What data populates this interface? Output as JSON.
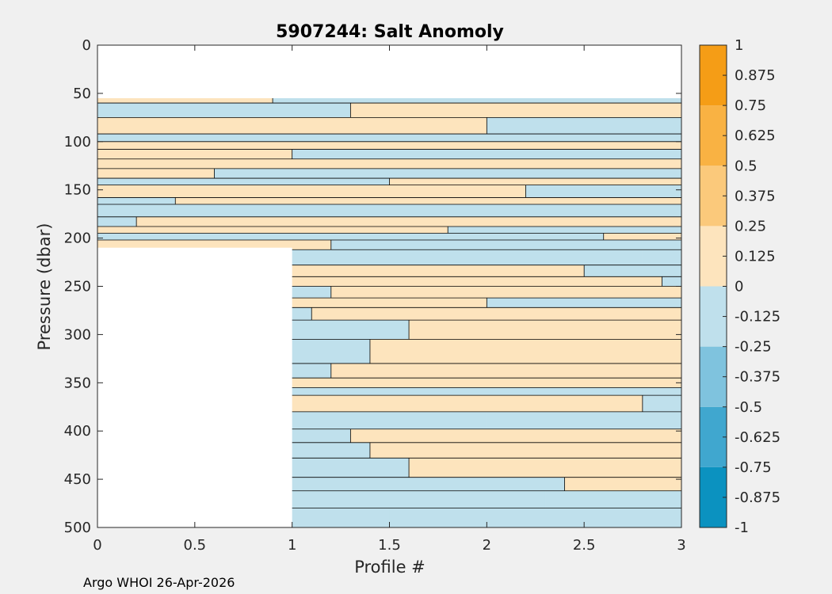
{
  "chart_data": {
    "type": "contourf",
    "title": "5907244: Salt Anomoly",
    "xlabel": "Profile #",
    "ylabel": "Pressure (dbar)",
    "xlim": [
      0,
      3
    ],
    "ylim": [
      0,
      500
    ],
    "y_reversed": true,
    "x_ticks": [
      0,
      0.5,
      1,
      1.5,
      2,
      2.5,
      3
    ],
    "x_tick_labels": [
      "0",
      "0.5",
      "1",
      "1.5",
      "2",
      "2.5",
      "3"
    ],
    "y_ticks": [
      0,
      50,
      100,
      150,
      200,
      250,
      300,
      350,
      400,
      450,
      500
    ],
    "y_tick_labels": [
      "0",
      "50",
      "100",
      "150",
      "200",
      "250",
      "300",
      "350",
      "400",
      "450",
      "500"
    ],
    "profiles": [
      {
        "x": 0,
        "top": 55,
        "bottom": 210
      },
      {
        "x": 1,
        "top": 55,
        "bottom": 500
      },
      {
        "x": 2,
        "top": 55,
        "bottom": 500
      },
      {
        "x": 3,
        "top": 55,
        "bottom": 500
      }
    ],
    "anomaly_bands": [
      {
        "pmin": 55,
        "pmax": 60,
        "x_split": 0.9,
        "left": 0.1,
        "right": -0.1
      },
      {
        "pmin": 60,
        "pmax": 75,
        "x_split": 1.3,
        "left": -0.1,
        "right": 0.1
      },
      {
        "pmin": 75,
        "pmax": 92,
        "x_split": 2.0,
        "left": 0.1,
        "right": -0.1
      },
      {
        "pmin": 92,
        "pmax": 100,
        "x_split": 0.3,
        "left": -0.1,
        "right": -0.1
      },
      {
        "pmin": 100,
        "pmax": 108,
        "x_split": 2.8,
        "left": 0.1,
        "right": 0.1
      },
      {
        "pmin": 108,
        "pmax": 118,
        "x_split": 1.0,
        "left": 0.1,
        "right": -0.1
      },
      {
        "pmin": 118,
        "pmax": 128,
        "x_split": 2.0,
        "left": 0.1,
        "right": 0.1
      },
      {
        "pmin": 128,
        "pmax": 138,
        "x_split": 0.6,
        "left": 0.1,
        "right": -0.1
      },
      {
        "pmin": 138,
        "pmax": 145,
        "x_split": 1.5,
        "left": -0.1,
        "right": 0.1
      },
      {
        "pmin": 145,
        "pmax": 158,
        "x_split": 2.2,
        "left": 0.1,
        "right": -0.1
      },
      {
        "pmin": 158,
        "pmax": 165,
        "x_split": 0.4,
        "left": -0.1,
        "right": 0.1
      },
      {
        "pmin": 165,
        "pmax": 178,
        "x_split": 2.4,
        "left": -0.1,
        "right": -0.1
      },
      {
        "pmin": 178,
        "pmax": 188,
        "x_split": 0.2,
        "left": -0.1,
        "right": 0.1
      },
      {
        "pmin": 188,
        "pmax": 195,
        "x_split": 1.8,
        "left": 0.1,
        "right": -0.1
      },
      {
        "pmin": 195,
        "pmax": 202,
        "x_split": 2.6,
        "left": -0.1,
        "right": 0.1
      },
      {
        "pmin": 202,
        "pmax": 212,
        "x_split": 1.2,
        "left": 0.1,
        "right": -0.1
      },
      {
        "pmin": 212,
        "pmax": 228,
        "x_split": 2.8,
        "left": -0.1,
        "right": -0.1
      },
      {
        "pmin": 228,
        "pmax": 240,
        "x_split": 2.5,
        "left": 0.1,
        "right": -0.1
      },
      {
        "pmin": 240,
        "pmax": 250,
        "x_split": 2.9,
        "left": 0.1,
        "right": -0.1
      },
      {
        "pmin": 250,
        "pmax": 262,
        "x_split": 1.2,
        "left": -0.1,
        "right": 0.1
      },
      {
        "pmin": 262,
        "pmax": 272,
        "x_split": 2.0,
        "left": 0.1,
        "right": -0.1
      },
      {
        "pmin": 272,
        "pmax": 285,
        "x_split": 1.1,
        "left": -0.1,
        "right": 0.1
      },
      {
        "pmin": 285,
        "pmax": 305,
        "x_split": 1.6,
        "left": -0.1,
        "right": 0.1
      },
      {
        "pmin": 305,
        "pmax": 330,
        "x_split": 1.4,
        "left": -0.1,
        "right": 0.1
      },
      {
        "pmin": 330,
        "pmax": 345,
        "x_split": 1.2,
        "left": -0.1,
        "right": 0.1
      },
      {
        "pmin": 345,
        "pmax": 355,
        "x_split": 2.6,
        "left": 0.1,
        "right": 0.1
      },
      {
        "pmin": 355,
        "pmax": 363,
        "x_split": 2.7,
        "left": -0.1,
        "right": -0.1
      },
      {
        "pmin": 363,
        "pmax": 380,
        "x_split": 2.8,
        "left": 0.1,
        "right": -0.1
      },
      {
        "pmin": 380,
        "pmax": 398,
        "x_split": 2.0,
        "left": -0.1,
        "right": -0.1
      },
      {
        "pmin": 398,
        "pmax": 412,
        "x_split": 1.3,
        "left": -0.1,
        "right": 0.1
      },
      {
        "pmin": 412,
        "pmax": 428,
        "x_split": 1.4,
        "left": -0.1,
        "right": 0.1
      },
      {
        "pmin": 428,
        "pmax": 448,
        "x_split": 1.6,
        "left": -0.1,
        "right": 0.1
      },
      {
        "pmin": 448,
        "pmax": 462,
        "x_split": 2.4,
        "left": -0.1,
        "right": 0.1
      },
      {
        "pmin": 462,
        "pmax": 480,
        "x_split": 2.3,
        "left": -0.1,
        "right": -0.1
      },
      {
        "pmin": 480,
        "pmax": 500,
        "x_split": 1.5,
        "left": -0.1,
        "right": -0.1
      }
    ],
    "colorbar": {
      "clim": [
        -1,
        1
      ],
      "levels": [
        -1,
        -0.75,
        -0.5,
        -0.25,
        0,
        0.25,
        0.5,
        0.75,
        1
      ],
      "colors": [
        "#0b92c0",
        "#40a7cf",
        "#7fc3de",
        "#bfe0ec",
        "#fde4bd",
        "#fbc97b",
        "#f9b243",
        "#f59d16"
      ],
      "tick_labels": [
        "1",
        "0.875",
        "0.75",
        "0.625",
        "0.5",
        "0.375",
        "0.25",
        "0.125",
        "0",
        "-0.125",
        "-0.25",
        "-0.375",
        "-0.5",
        "-0.625",
        "-0.75",
        "-0.875",
        "-1"
      ]
    }
  },
  "footer": {
    "text": "Argo WHOI 26-Apr-2026"
  }
}
